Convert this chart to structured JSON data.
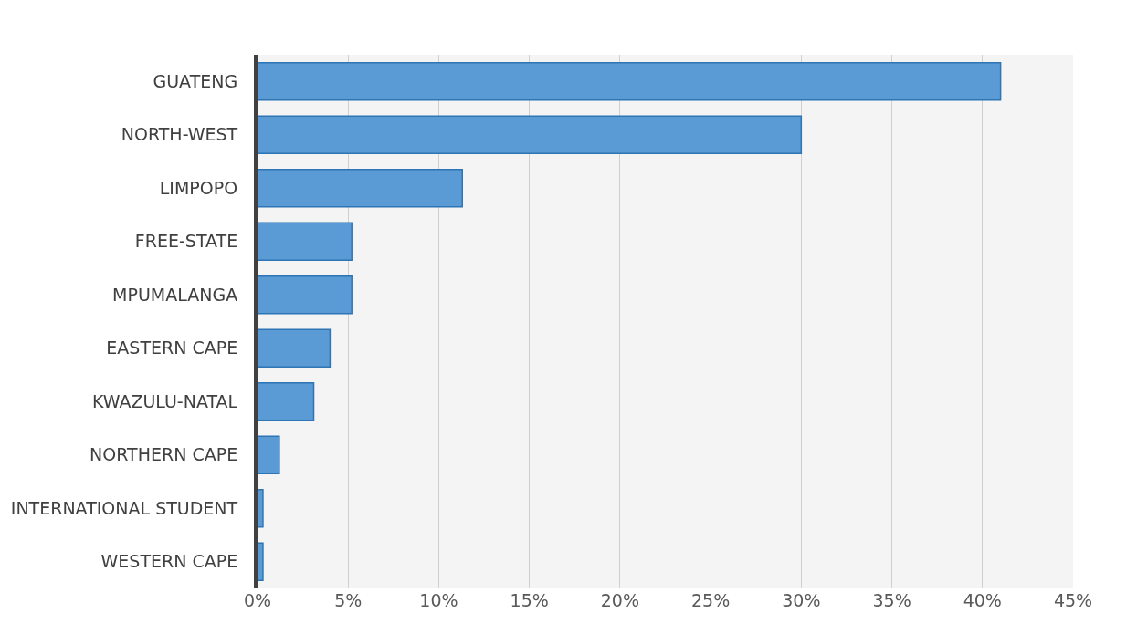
{
  "chart_data": {
    "type": "bar",
    "orientation": "horizontal",
    "categories": [
      "GUATENG",
      "NORTH-WEST",
      "LIMPOPO",
      "FREE-STATE",
      "MPUMALANGA",
      "EASTERN CAPE",
      "KWAZULU-NATAL",
      "NORTHERN CAPE",
      "INTERNATIONAL STUDENT",
      "WESTERN CAPE"
    ],
    "values": [
      41,
      30,
      11.3,
      5.2,
      5.2,
      4,
      3.1,
      1.2,
      0.3,
      0.3
    ],
    "color": "#5b9bd5",
    "xlim": [
      0,
      45
    ],
    "xticks": [
      {
        "value": 0,
        "label": "0%"
      },
      {
        "value": 5,
        "label": "5%"
      },
      {
        "value": 10,
        "label": "10%"
      },
      {
        "value": 15,
        "label": "15%"
      },
      {
        "value": 20,
        "label": "20%"
      },
      {
        "value": 25,
        "label": "25%"
      },
      {
        "value": 30,
        "label": "30%"
      },
      {
        "value": 35,
        "label": "35%"
      },
      {
        "value": 40,
        "label": "40%"
      },
      {
        "value": 45,
        "label": "45%"
      }
    ],
    "grid": "x"
  }
}
